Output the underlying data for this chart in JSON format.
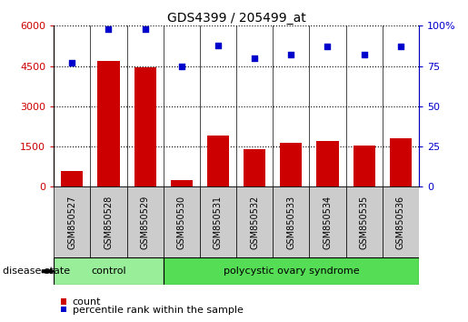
{
  "title": "GDS4399 / 205499_at",
  "samples": [
    "GSM850527",
    "GSM850528",
    "GSM850529",
    "GSM850530",
    "GSM850531",
    "GSM850532",
    "GSM850533",
    "GSM850534",
    "GSM850535",
    "GSM850536"
  ],
  "counts": [
    600,
    4700,
    4450,
    250,
    1900,
    1400,
    1650,
    1700,
    1550,
    1800
  ],
  "percentiles": [
    77,
    98,
    98,
    75,
    88,
    80,
    82,
    87,
    82,
    87
  ],
  "bar_color": "#cc0000",
  "dot_color": "#0000cc",
  "ylim_left": [
    0,
    6000
  ],
  "ylim_right": [
    0,
    100
  ],
  "yticks_left": [
    0,
    1500,
    3000,
    4500,
    6000
  ],
  "yticks_right": [
    0,
    25,
    50,
    75,
    100
  ],
  "groups": [
    {
      "label": "control",
      "start": 0,
      "end": 2,
      "color": "#99ee99"
    },
    {
      "label": "polycystic ovary syndrome",
      "start": 3,
      "end": 9,
      "color": "#55dd55"
    }
  ],
  "disease_state_label": "disease state",
  "legend_count_label": "count",
  "legend_percentile_label": "percentile rank within the sample",
  "background_color": "#ffffff",
  "bar_color_legend": "#cc0000",
  "dot_color_legend": "#0000cc",
  "grid_color": "#000000",
  "bar_width": 0.6,
  "tick_bg_color": "#cccccc",
  "n_samples": 10
}
